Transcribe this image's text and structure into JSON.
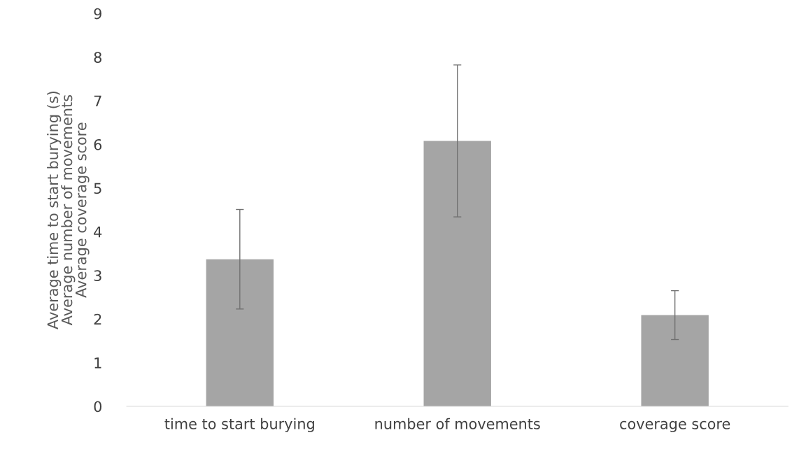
{
  "chart_data": {
    "type": "bar",
    "ylabel": "Average time to start burying (s)\nAverage number of movements\nAverage coverage score",
    "categories": [
      "time to start burying",
      "number of movements",
      "coverage score"
    ],
    "values": [
      3.37,
      6.08,
      2.09
    ],
    "errors": [
      1.14,
      1.74,
      0.56
    ],
    "color": "#a5a5a5",
    "ylim": [
      0,
      9
    ],
    "yticks": [
      0,
      1,
      2,
      3,
      4,
      5,
      6,
      7,
      8,
      9
    ],
    "grid": false,
    "legend": false
  }
}
